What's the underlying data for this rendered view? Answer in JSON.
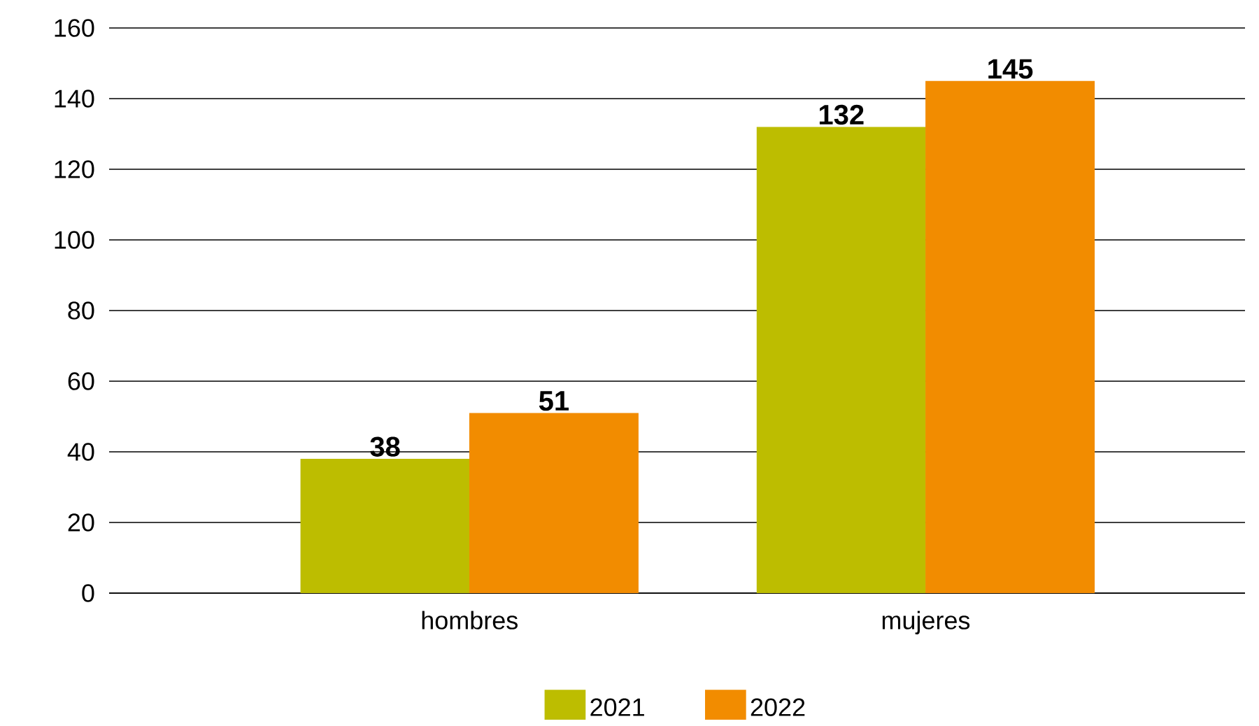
{
  "chart_data": {
    "type": "bar",
    "categories": [
      "hombres",
      "mujeres"
    ],
    "series": [
      {
        "name": "2021",
        "color": "#bdbd00",
        "values": [
          38,
          132
        ]
      },
      {
        "name": "2022",
        "color": "#f28c00",
        "values": [
          51,
          145
        ]
      }
    ],
    "ylim": [
      0,
      160
    ],
    "yticks": [
      0,
      20,
      40,
      60,
      80,
      100,
      120,
      140,
      160
    ],
    "grid": "y",
    "legend": "bottom",
    "data_labels": true
  }
}
